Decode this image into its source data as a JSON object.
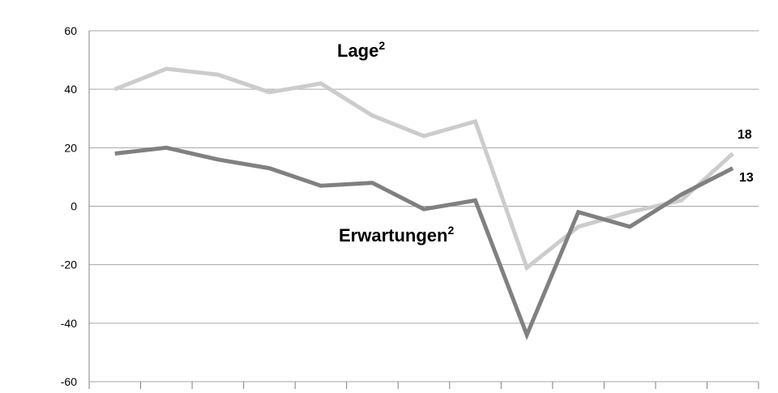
{
  "chart_data": {
    "type": "line",
    "title": "",
    "xlabel": "",
    "ylabel": "",
    "ylim": [
      -60,
      60
    ],
    "yticks": [
      60,
      40,
      20,
      0,
      -20,
      -40,
      -60
    ],
    "grid": true,
    "n_categories": 13,
    "series": [
      {
        "name": "Lage²",
        "color": "#cccccc",
        "values": [
          40,
          47,
          45,
          39,
          42,
          31,
          24,
          29,
          -21,
          -7,
          -2,
          2,
          18
        ],
        "end_label": "18"
      },
      {
        "name": "Erwartungen²",
        "color": "#808080",
        "values": [
          18,
          20,
          16,
          13,
          7,
          8,
          -1,
          2,
          -44,
          -2,
          -7,
          4,
          13
        ],
        "end_label": "13"
      }
    ]
  }
}
